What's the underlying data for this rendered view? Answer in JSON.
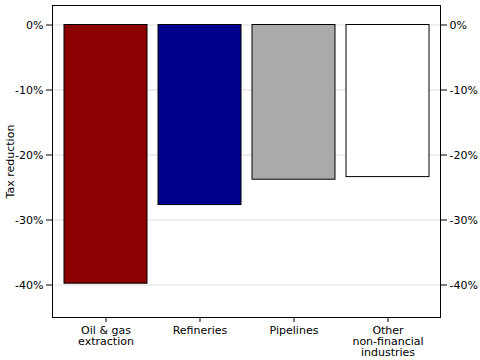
{
  "chart_data": {
    "type": "bar",
    "y_label": "Tax reduction",
    "categories": [
      "Oil & gas\nextraction",
      "Refineries",
      "Pipelines",
      "Other\nnon-financial\nindustries"
    ],
    "values": [
      -39.8,
      -27.7,
      -23.8,
      -23.4
    ],
    "colors": [
      "#8b0000",
      "#00008b",
      "#aaaaaa",
      "#ffffff"
    ],
    "ylim": [
      -45,
      3
    ],
    "yticks": [
      {
        "value": 0,
        "label": "0%"
      },
      {
        "value": -10,
        "label": "-10%"
      },
      {
        "value": -20,
        "label": "-20%"
      },
      {
        "value": -30,
        "label": "-30%"
      },
      {
        "value": -40,
        "label": "-40%"
      }
    ],
    "grid": true
  }
}
